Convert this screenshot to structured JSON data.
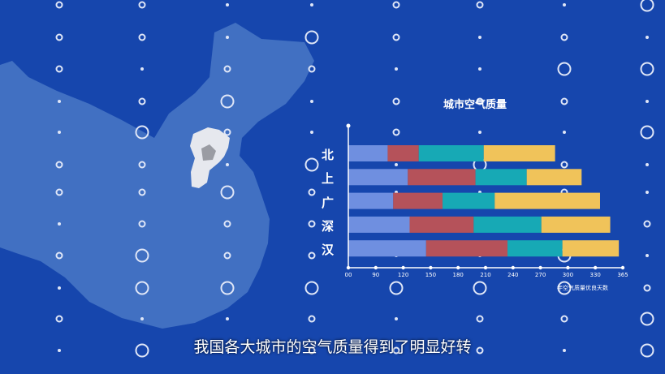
{
  "subtitle": "我国各大城市的空气质量得到了明显好转",
  "colors": {
    "background": "#1646ad",
    "map": "#4170c2",
    "highlight": "#e6e8ee"
  },
  "chart_data": {
    "type": "bar",
    "stacked": true,
    "orientation": "horizontal",
    "title": "城市空气质量",
    "xlabel": "年空气质量优良天数",
    "categories": [
      "北",
      "上",
      "广",
      "深",
      "汉"
    ],
    "x_ticks": [
      {
        "label": "00",
        "value": 0
      },
      {
        "label": "90",
        "value": 90
      },
      {
        "label": "120",
        "value": 120
      },
      {
        "label": "150",
        "value": 150
      },
      {
        "label": "180",
        "value": 180
      },
      {
        "label": "210",
        "value": 210
      },
      {
        "label": "240",
        "value": 240
      },
      {
        "label": "270",
        "value": 270
      },
      {
        "label": "300",
        "value": 300
      },
      {
        "label": "330",
        "value": 330
      },
      {
        "label": "365",
        "value": 365
      }
    ],
    "segment_colors": [
      "#6f8fe0",
      "#b5525a",
      "#17a9b5",
      "#f0c35a"
    ],
    "segment_ends": [
      [
        103,
        137,
        208,
        286
      ],
      [
        125,
        199,
        255,
        315
      ],
      [
        109,
        163,
        220,
        336
      ],
      [
        127,
        197,
        271,
        349
      ],
      [
        145,
        234,
        294,
        360
      ]
    ],
    "grid": false,
    "legend": "none"
  }
}
